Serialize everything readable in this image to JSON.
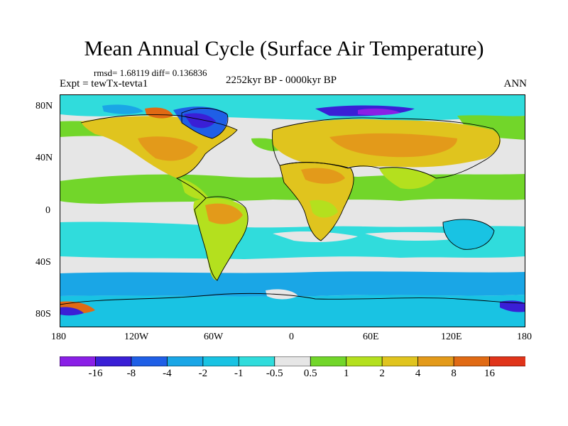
{
  "title": "Mean Annual Cycle (Surface Air Temperature)",
  "stats": "rmsd= 1.68119 diff= 0.136836",
  "experiment": "Expt = tewTx-tevta1",
  "period": "2252kyr BP - 0000kyr BP",
  "season": "ANN",
  "lat_labels": [
    "80N",
    "40N",
    "0",
    "40S",
    "80S"
  ],
  "lon_labels": [
    "180",
    "120W",
    "60W",
    "0",
    "60E",
    "120E",
    "180"
  ],
  "colorbar": {
    "labels": [
      "-16",
      "-8",
      "-4",
      "-2",
      "-1",
      "-0.5",
      "0.5",
      "1",
      "2",
      "4",
      "8",
      "16"
    ],
    "colors": [
      "#8a1fe6",
      "#3a1fd6",
      "#1f5fe6",
      "#1aa6e6",
      "#19c3e3",
      "#30dcdc",
      "#e6e6e6",
      "#72d62a",
      "#b4e01e",
      "#e0c41e",
      "#e39a1a",
      "#e06a14",
      "#e0341a"
    ]
  }
}
